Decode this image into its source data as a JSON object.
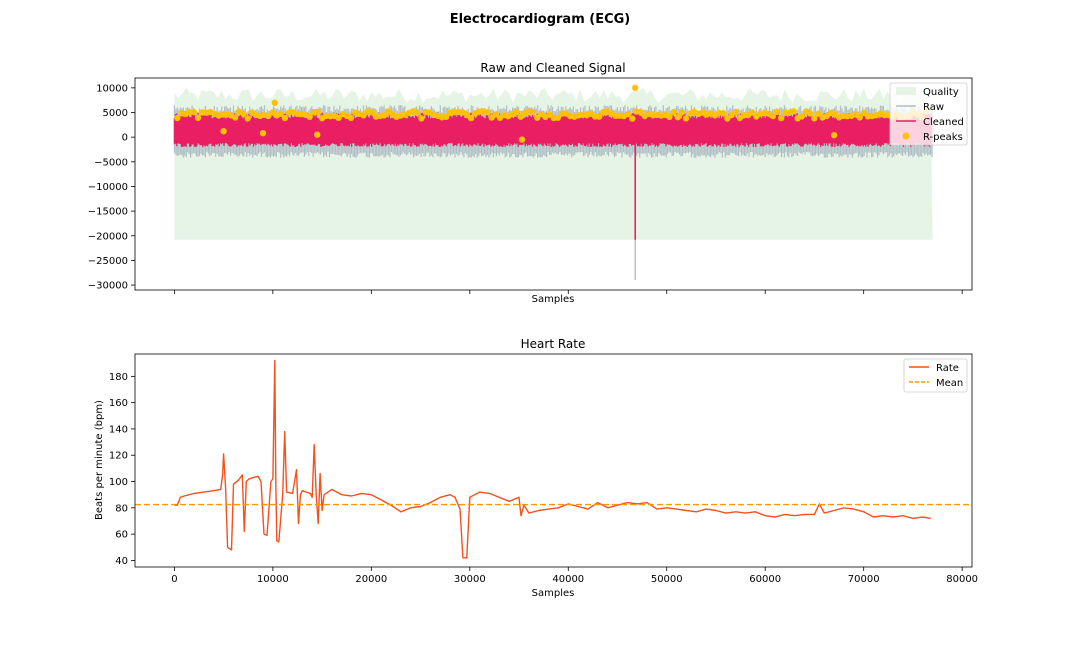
{
  "figure": {
    "title": "Electrocardiogram (ECG)"
  },
  "colors": {
    "quality": "#e6f4e6",
    "raw": "#b0bec5",
    "cleaned": "#e91e63",
    "rpeaks": "#ffc107",
    "rate": "#f4511e",
    "mean": "#ff9800"
  },
  "chart_data": [
    {
      "type": "line",
      "title": "Raw and Cleaned Signal",
      "xlabel": "Samples",
      "ylabel": "",
      "xlim": [
        -4000,
        81000
      ],
      "ylim": [
        -31000,
        12000
      ],
      "x_ticks": [
        0,
        10000,
        20000,
        30000,
        40000,
        50000,
        60000,
        70000,
        80000
      ],
      "show_x_tick_labels": false,
      "y_ticks": [
        10000,
        5000,
        0,
        -5000,
        -10000,
        -15000,
        -20000,
        -25000,
        -30000
      ],
      "y_tick_labels": [
        "10000",
        "5000",
        "0",
        "−5000",
        "−10000",
        "−15000",
        "−20000",
        "−25000",
        "−30000"
      ],
      "legend_position": "top-right",
      "series": [
        {
          "name": "Quality",
          "kind": "area",
          "x_range": [
            0,
            77000
          ],
          "baseline": -20800,
          "upper_approx": 8500
        },
        {
          "name": "Raw",
          "kind": "line",
          "x_range": [
            0,
            77000
          ],
          "envelope_low": -3000,
          "envelope_high": 6500,
          "min_spike": {
            "x": 46800,
            "y": -29000
          }
        },
        {
          "name": "Cleaned",
          "kind": "line",
          "x_range": [
            0,
            77000
          ],
          "envelope_low": -2000,
          "envelope_high": 5000,
          "min_spike": {
            "x": 46800,
            "y": -20800
          }
        },
        {
          "name": "R-peaks",
          "kind": "scatter",
          "typical_y": 4500,
          "outliers": [
            {
              "x": 46800,
              "y": 10000
            },
            {
              "x": 35300,
              "y": -500
            },
            {
              "x": 67000,
              "y": 400
            },
            {
              "x": 5000,
              "y": 1200
            },
            {
              "x": 9000,
              "y": 800
            },
            {
              "x": 10200,
              "y": 7000
            },
            {
              "x": 14500,
              "y": 500
            }
          ]
        }
      ]
    },
    {
      "type": "line",
      "title": "Heart Rate",
      "xlabel": "Samples",
      "ylabel": "Beats per minute (bpm)",
      "xlim": [
        -4000,
        81000
      ],
      "ylim": [
        35,
        197
      ],
      "x_ticks": [
        0,
        10000,
        20000,
        30000,
        40000,
        50000,
        60000,
        70000,
        80000
      ],
      "x_tick_labels": [
        "0",
        "10000",
        "20000",
        "30000",
        "40000",
        "50000",
        "60000",
        "70000",
        "80000"
      ],
      "y_ticks": [
        40,
        60,
        80,
        100,
        120,
        140,
        160,
        180
      ],
      "y_tick_labels": [
        "40",
        "60",
        "80",
        "100",
        "120",
        "140",
        "160",
        "180"
      ],
      "legend_position": "top-right",
      "series": [
        {
          "name": "Rate",
          "x": [
            0,
            300,
            600,
            1000,
            2000,
            3000,
            4000,
            4700,
            4900,
            5000,
            5200,
            5400,
            5800,
            6000,
            6500,
            6900,
            7100,
            7300,
            7600,
            8000,
            8500,
            8800,
            9100,
            9400,
            9800,
            10000,
            10200,
            10300,
            10400,
            10600,
            11000,
            11200,
            11400,
            12000,
            12400,
            12600,
            12800,
            13000,
            13400,
            13800,
            14000,
            14200,
            14400,
            14600,
            14800,
            15000,
            15200,
            16000,
            17000,
            18000,
            19000,
            20000,
            21000,
            22000,
            23000,
            24000,
            25000,
            26000,
            27000,
            28000,
            28500,
            29000,
            29300,
            29700,
            30000,
            31000,
            32000,
            33000,
            34000,
            35000,
            35200,
            35500,
            36000,
            37000,
            38000,
            39000,
            40000,
            41000,
            42000,
            43000,
            44000,
            45000,
            46000,
            47000,
            48000,
            49000,
            50000,
            51000,
            52000,
            53000,
            54000,
            55000,
            56000,
            57000,
            58000,
            59000,
            60000,
            61000,
            62000,
            63000,
            64000,
            65000,
            65500,
            66000,
            67000,
            68000,
            69000,
            70000,
            71000,
            72000,
            73000,
            74000,
            75000,
            76000,
            76800
          ],
          "values": [
            82,
            82,
            88,
            89,
            91,
            92,
            93,
            94,
            105,
            121,
            95,
            50,
            48,
            98,
            101,
            105,
            62,
            100,
            102,
            103,
            104,
            100,
            60,
            59,
            100,
            102,
            192,
            100,
            55,
            54,
            90,
            138,
            92,
            91,
            109,
            68,
            90,
            93,
            92,
            91,
            88,
            128,
            90,
            68,
            106,
            78,
            90,
            94,
            90,
            89,
            91,
            90,
            86,
            82,
            77,
            80,
            81,
            84,
            88,
            90,
            88,
            79,
            42,
            42,
            88,
            92,
            91,
            88,
            85,
            88,
            74,
            82,
            76,
            78,
            79,
            80,
            83,
            81,
            79,
            84,
            80,
            82,
            84,
            83,
            84,
            79,
            80,
            79,
            78,
            77,
            79,
            78,
            76,
            77,
            76,
            77,
            74,
            73,
            75,
            74,
            75,
            75,
            83,
            76,
            78,
            80,
            79,
            77,
            73,
            74,
            73,
            74,
            72,
            73,
            72
          ]
        },
        {
          "name": "Mean",
          "kind": "hline",
          "y": 82.5
        }
      ]
    }
  ]
}
